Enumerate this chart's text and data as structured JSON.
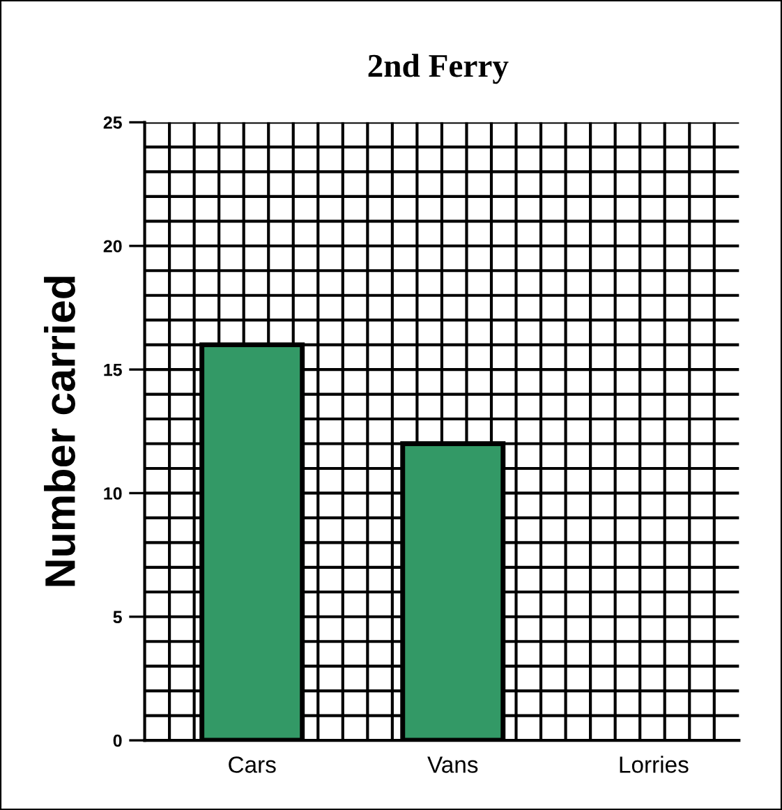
{
  "chart_data": {
    "type": "bar",
    "title": "2nd Ferry",
    "ylabel": "Number carried",
    "categories": [
      "Cars",
      "Vans",
      "Lorries"
    ],
    "values": [
      16,
      12,
      null
    ],
    "color": "#339966",
    "ylim": [
      0,
      25
    ],
    "yticks": [
      0,
      5,
      10,
      15,
      20,
      25
    ],
    "grid": true
  }
}
